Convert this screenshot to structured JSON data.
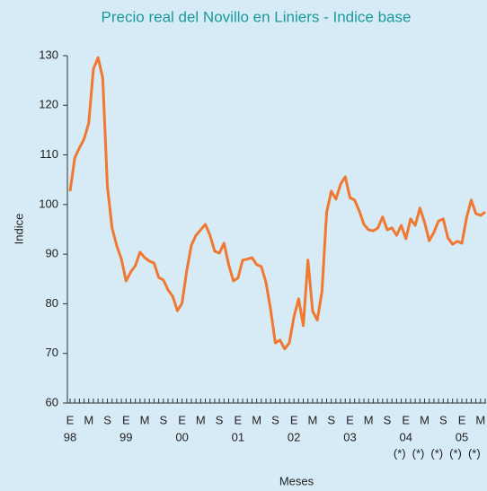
{
  "chart_data": {
    "type": "line",
    "title": "Precio real del Novillo en Liniers - Indice base",
    "y_label": "Indice",
    "x_label": "Meses",
    "categories": [
      "E",
      null,
      null,
      null,
      "M",
      null,
      null,
      null,
      "S",
      null,
      null,
      null,
      "E",
      null,
      null,
      null,
      "M",
      null,
      null,
      null,
      "S",
      null,
      null,
      null,
      "E",
      null,
      null,
      null,
      "M",
      null,
      null,
      null,
      "S",
      null,
      null,
      null,
      "E",
      null,
      null,
      null,
      "M",
      null,
      null,
      null,
      "S",
      null,
      null,
      null,
      "E",
      null,
      null,
      null,
      "M",
      null,
      null,
      null,
      "S",
      null,
      null,
      null,
      "E",
      null,
      null,
      null,
      "M",
      null,
      null,
      null,
      "S",
      null,
      null,
      null,
      "E",
      null,
      null,
      null,
      "M",
      null,
      null,
      null,
      "S",
      null,
      null,
      null,
      "E",
      null,
      null,
      null,
      "M",
      null
    ],
    "years": [
      "98",
      null,
      null,
      null,
      null,
      null,
      null,
      null,
      null,
      null,
      null,
      null,
      "99",
      null,
      null,
      null,
      null,
      null,
      null,
      null,
      null,
      null,
      null,
      null,
      "00",
      null,
      null,
      null,
      null,
      null,
      null,
      null,
      null,
      null,
      null,
      null,
      "01",
      null,
      null,
      null,
      null,
      null,
      null,
      null,
      null,
      null,
      null,
      null,
      "02",
      null,
      null,
      null,
      null,
      null,
      null,
      null,
      null,
      null,
      null,
      null,
      "03",
      null,
      null,
      null,
      null,
      null,
      null,
      null,
      null,
      null,
      null,
      null,
      "04",
      null,
      null,
      null,
      null,
      null,
      null,
      null,
      null,
      null,
      null,
      null,
      "05",
      null,
      null,
      null,
      null,
      null
    ],
    "notes": [
      null,
      null,
      null,
      null,
      null,
      null,
      null,
      null,
      null,
      null,
      null,
      null,
      null,
      null,
      null,
      null,
      null,
      null,
      null,
      null,
      null,
      null,
      null,
      null,
      null,
      null,
      null,
      null,
      null,
      null,
      null,
      null,
      null,
      null,
      null,
      null,
      null,
      null,
      null,
      null,
      null,
      null,
      null,
      null,
      null,
      null,
      null,
      null,
      null,
      null,
      null,
      null,
      null,
      null,
      null,
      null,
      null,
      null,
      null,
      null,
      null,
      null,
      null,
      null,
      null,
      null,
      null,
      null,
      null,
      null,
      null,
      null,
      "(*)",
      null,
      null,
      null,
      "(*)",
      null,
      null,
      null,
      "(*)",
      null,
      null,
      null,
      "(*)",
      null,
      null,
      null,
      "(*)",
      null
    ],
    "values": [
      102.7,
      109.4,
      111.4,
      113.2,
      116.4,
      127.3,
      129.6,
      125.5,
      103.6,
      95.3,
      91.7,
      89,
      84.6,
      86.4,
      87.7,
      90.4,
      89.3,
      88.6,
      88.2,
      85.3,
      84.8,
      82.8,
      81.5,
      78.6,
      80.1,
      86.6,
      91.8,
      93.8,
      94.9,
      96,
      93.8,
      90.6,
      90.2,
      92.2,
      87.9,
      84.6,
      85.2,
      88.8,
      89,
      89.3,
      87.9,
      87.5,
      84.3,
      78.8,
      72.1,
      72.7,
      70.9,
      72.1,
      77.4,
      81,
      75.6,
      88.8,
      78.5,
      76.7,
      82.4,
      98.4,
      102.7,
      101.1,
      104.1,
      105.6,
      101.4,
      100.9,
      98.7,
      96,
      94.9,
      94.7,
      95.3,
      97.5,
      94.9,
      95.3,
      93.8,
      95.8,
      93.1,
      97.1,
      95.8,
      99.3,
      96.4,
      92.7,
      94.4,
      96.7,
      97.1,
      93.3,
      92,
      92.6,
      92.2,
      97.3,
      100.9,
      98.2,
      97.8,
      98.5
    ],
    "color": "#f07830",
    "ylim": [
      60,
      130
    ],
    "yticks": [
      60,
      70,
      80,
      90,
      100,
      110,
      120,
      130
    ],
    "grid": false
  }
}
